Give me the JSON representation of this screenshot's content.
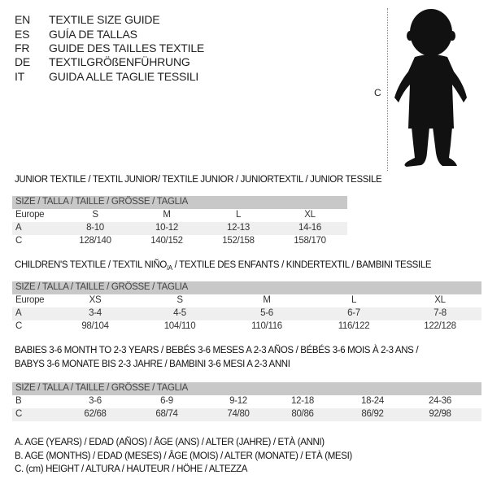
{
  "languages": [
    {
      "code": "EN",
      "title": "TEXTILE SIZE GUIDE"
    },
    {
      "code": "ES",
      "title": "GUÍA DE TALLAS"
    },
    {
      "code": "FR",
      "title": "GUIDE DES TAILLES TEXTILE"
    },
    {
      "code": "DE",
      "title": "TEXTILGRÖßENFÜHRUNG"
    },
    {
      "code": "IT",
      "title": "GUIDA ALLE TAGLIE TESSILI"
    }
  ],
  "figure": {
    "height_label": "C",
    "icon": "child-silhouette"
  },
  "junior": {
    "title": "JUNIOR TEXTILE / TEXTIL JUNIOR/ TEXTILE JUNIOR / JUNIORTEXTIL / JUNIOR TESSILE",
    "header": "SIZE / TALLA / TAILLE / GRÖSSE / TAGLIA",
    "rows": [
      {
        "label": "Europe",
        "values": [
          "S",
          "M",
          "L",
          "XL"
        ]
      },
      {
        "label": "A",
        "values": [
          "8-10",
          "10-12",
          "12-13",
          "14-16"
        ]
      },
      {
        "label": "C",
        "values": [
          "128/140",
          "140/152",
          "152/158",
          "158/170"
        ]
      }
    ]
  },
  "children": {
    "title": "CHILDREN'S TEXTILE / TEXTIL NIÑO",
    "title_sub": "/A",
    "title_rest": " / TEXTILE DES ENFANTS / KINDERTEXTIL / BAMBINI TESSILE",
    "header": "SIZE / TALLA / TAILLE / GRÖSSE / TAGLIA",
    "rows": [
      {
        "label": "Europe",
        "values": [
          "XS",
          "S",
          "M",
          "L",
          "XL"
        ]
      },
      {
        "label": "A",
        "values": [
          "3-4",
          "4-5",
          "5-6",
          "6-7",
          "7-8"
        ]
      },
      {
        "label": "C",
        "values": [
          "98/104",
          "104/110",
          "110/116",
          "116/122",
          "122/128"
        ]
      }
    ]
  },
  "babies": {
    "title_line1": "BABIES 3-6 MONTH TO 2-3 YEARS / BEBÉS 3-6 MESES A 2-3 AÑOS / BÉBÉS 3-6 MOIS À 2-3 ANS /",
    "title_line2": "BABYS 3-6 MONATE BIS 2-3 JAHRE / BAMBINI 3-6 MESI A 2-3 ANNI",
    "header": "SIZE / TALLA / TAILLE / GRÖSSE / TAGLIA",
    "rows": [
      {
        "label": "B",
        "values": [
          "3-6",
          "6-9",
          "9-12",
          "12-18",
          "18-24",
          "24-36"
        ]
      },
      {
        "label": "C",
        "values": [
          "62/68",
          "68/74",
          "74/80",
          "80/86",
          "86/92",
          "92/98"
        ]
      }
    ]
  },
  "legend": [
    "A. AGE (YEARS) / EDAD (AÑOS) / ÂGE (ANS) / ALTER (JAHRE) / ETÀ (ANNI)",
    "B. AGE (MONTHS) / EDAD (MESES) / ÂGE (MOIS) / ALTER (MONATE) / ETÀ (MESI)",
    "C. (cm) HEIGHT / ALTURA / HAUTEUR / HÖHE / ALTEZZA"
  ]
}
